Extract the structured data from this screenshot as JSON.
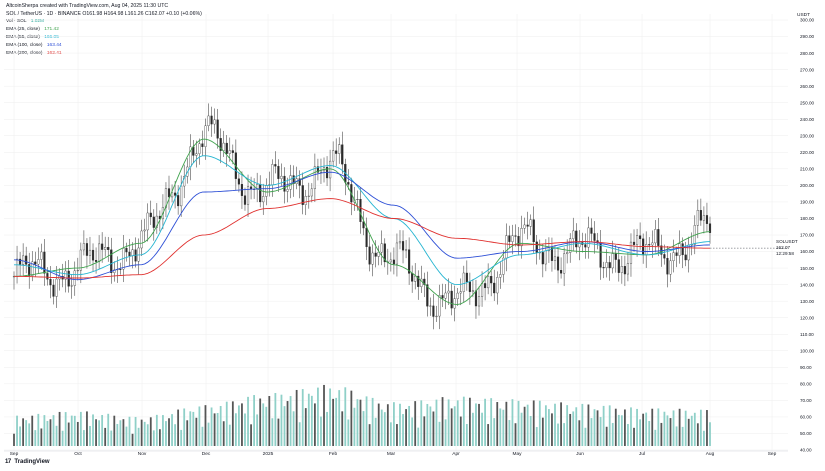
{
  "header": {
    "credit": "AltcoinSherpa created with TradingView.com, Aug 04, 2025 11:30 UTC",
    "symbol_line": "SOL / TetherUS · 1D · BINANCE  O161.98  H164.98  L161.26  C162.07  +0.10 (+0.06%)",
    "volume_label": "Vol · SOL",
    "volume_value": "1.02M"
  },
  "indicators": [
    {
      "label": "EMA (25, close)",
      "value": "171.42",
      "color": "#3fa34d"
    },
    {
      "label": "EMA (55, close)",
      "value": "166.05",
      "color": "#26b5d1"
    },
    {
      "label": "EMA (100, close)",
      "value": "163.44",
      "color": "#2d4fd6"
    },
    {
      "label": "EMA (200, close)",
      "value": "162.41",
      "color": "#e0312f"
    }
  ],
  "axis_unit": "USDT",
  "price_tag": {
    "symbol": "SOLUSDT",
    "price": "162.07",
    "countdown": "12:29:58"
  },
  "footer": {
    "logo_mark": "17",
    "logo_text": "TradingView"
  },
  "colors": {
    "candle": "#2a2a2a",
    "volume": "#8fd0c8",
    "volume_dark": "#555555",
    "grid": "#eeeeee"
  },
  "chart_data": {
    "type": "line",
    "title": "SOL / TetherUS · 1D · BINANCE",
    "xlabel": "",
    "ylabel": "USDT",
    "ylim": [
      40,
      300
    ],
    "x_ticks": [
      "Sep",
      "Oct",
      "Nov",
      "Dec",
      "2025",
      "Feb",
      "Mar",
      "Apr",
      "May",
      "Jun",
      "Jul",
      "Aug",
      "Sep"
    ],
    "y_ticks": [
      "300.00",
      "290.00",
      "280.00",
      "270.00",
      "260.00",
      "250.00",
      "240.00",
      "230.00",
      "220.00",
      "210.00",
      "200.00",
      "190.00",
      "180.00",
      "170.00",
      "160.00",
      "150.00",
      "140.00",
      "130.00",
      "120.00",
      "110.00",
      "100.00",
      "90.00",
      "80.00",
      "70.00",
      "60.00",
      "50.00",
      "40.00"
    ],
    "x": [
      "Sep",
      "Oct",
      "Nov",
      "Dec",
      "2025",
      "Feb",
      "Mar",
      "Apr",
      "May",
      "Jun",
      "Jul",
      "Aug"
    ],
    "series": [
      {
        "name": "EMA (25, close)",
        "color": "#3fa34d",
        "values": [
          145,
          150,
          165,
          228,
          196,
          210,
          152,
          128,
          165,
          160,
          158,
          172
        ]
      },
      {
        "name": "EMA (55, close)",
        "color": "#26b5d1",
        "values": [
          152,
          146,
          158,
          218,
          200,
          212,
          180,
          140,
          158,
          165,
          158,
          166
        ]
      },
      {
        "name": "EMA (100, close)",
        "color": "#2d4fd6",
        "values": [
          155,
          143,
          152,
          196,
          198,
          208,
          188,
          156,
          160,
          166,
          160,
          164
        ]
      },
      {
        "name": "EMA (200, close)",
        "color": "#e0312f",
        "values": [
          145,
          144,
          146,
          170,
          186,
          192,
          180,
          168,
          164,
          166,
          163,
          162
        ]
      }
    ],
    "volume": {
      "name": "Vol · SOL",
      "approx_peak_month": "Jan",
      "values": [
        2.1,
        2.4,
        2.0,
        2.8,
        3.6,
        4.2,
        3.0,
        3.4,
        3.2,
        2.9,
        2.6,
        2.5
      ]
    },
    "last_close": 162.07,
    "grid": true,
    "legend": "top-left"
  }
}
